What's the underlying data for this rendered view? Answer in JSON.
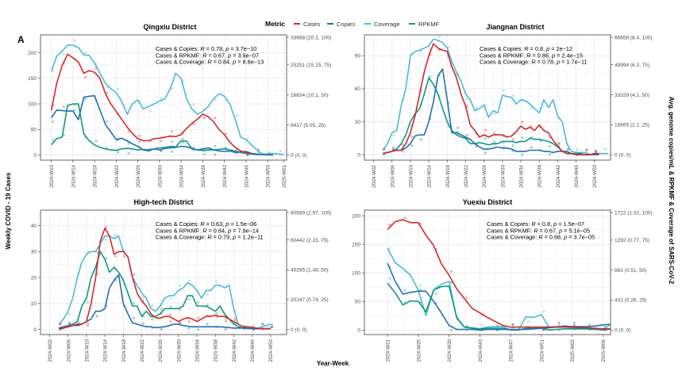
{
  "panel_label": "A",
  "y_left_label": "Weekly COVID - 19 Cases",
  "y_right_label": "Avg. genome copies/mL & RPKMF & Coverage of SARS-CoV-2",
  "x_label": "Year-Week",
  "legend": {
    "title": "Metric",
    "items": [
      {
        "name": "Cases",
        "color": "#d62728"
      },
      {
        "name": "Copies",
        "color": "#1f6fb4"
      },
      {
        "name": "Coverage",
        "color": "#4bbad8"
      },
      {
        "name": "RPKMF",
        "color": "#0f9a7e"
      }
    ]
  },
  "chart_data": [
    {
      "type": "line",
      "title": "Qingxiu District",
      "xlabel": "Year-Week",
      "ylabel": "Weekly COVID - 19 Cases",
      "x_start_week": 8,
      "x_ticks": [
        "2024-W10",
        "2024-W14",
        "2024-W18",
        "2024-W22",
        "2024-W26",
        "2024-W30",
        "2024-W34",
        "2024-W38",
        "2024-W42",
        "2024-W46",
        "2024-W50",
        "2025-W01"
      ],
      "x_tick_weeks": [
        10,
        14,
        18,
        22,
        26,
        30,
        34,
        38,
        42,
        46,
        50,
        53
      ],
      "x_range": [
        8,
        53.5
      ],
      "ylim": [
        -10,
        235
      ],
      "y_ticks": [
        0,
        50,
        100,
        150,
        200
      ],
      "right_ticks": [
        "0 (0, 0)",
        "8417 (5.05, 25)",
        "16834 (10.1, 50)",
        "25251 (15.15, 75)",
        "33668 (20.2, 100)"
      ],
      "right_max": 235,
      "annotations": [
        {
          "label": "Cases & Copies: ",
          "r": "0.78",
          "p": "3.7e−10"
        },
        {
          "label": "Cases & RPKMF: ",
          "r": "0.67",
          "p": "3.9e−07"
        },
        {
          "label": "Cases & Coverage: ",
          "r": "0.84",
          "p": "8.6e−13"
        }
      ],
      "series": [
        {
          "name": "Cases",
          "start": 10,
          "values": [
            87,
            140,
            175,
            197,
            190,
            182,
            160,
            165,
            162,
            150,
            120,
            100,
            85,
            70,
            55,
            42,
            32,
            28,
            28,
            32,
            33,
            35,
            37,
            36,
            40,
            52,
            62,
            70,
            80,
            75,
            65,
            50,
            40,
            25,
            15,
            8,
            5,
            3
          ]
        },
        {
          "name": "Copies",
          "start": 10,
          "values": [
            73,
            88,
            87,
            86,
            86,
            69,
            113,
            115,
            116,
            88,
            60,
            45,
            30,
            33,
            28,
            22,
            17,
            10,
            8,
            12,
            10,
            13,
            14,
            15,
            17,
            16,
            13,
            10,
            12,
            14,
            10,
            8,
            7,
            8,
            5,
            6,
            7,
            3,
            2,
            1,
            1,
            0
          ]
        },
        {
          "name": "Coverage",
          "start": 10,
          "values": [
            164,
            193,
            203,
            215,
            215,
            210,
            196,
            195,
            180,
            160,
            140,
            130,
            122,
            105,
            80,
            100,
            108,
            90,
            95,
            100,
            105,
            110,
            130,
            160,
            150,
            110,
            90,
            80,
            85,
            95,
            110,
            120,
            115,
            100,
            70,
            35,
            30,
            20,
            10,
            2,
            2,
            3,
            2,
            1
          ]
        },
        {
          "name": "RPKMF",
          "start": 10,
          "values": [
            20,
            32,
            35,
            97,
            100,
            100,
            42,
            28,
            20,
            15,
            12,
            10,
            9,
            12,
            13,
            12,
            10,
            11,
            10,
            12,
            14,
            15,
            17,
            16,
            28,
            27,
            12,
            10,
            9,
            10,
            10,
            11,
            12,
            10,
            8,
            5,
            3,
            2,
            1,
            1,
            1,
            0
          ]
        }
      ]
    },
    {
      "type": "line",
      "title": "Jiangnan District",
      "xlabel": "Year-Week",
      "ylabel": "Weekly COVID - 19 Cases",
      "x_start_week": 0,
      "x_ticks": [
        "2024-W02",
        "2024-W06",
        "2024-W10",
        "2024-W14",
        "2024-W18",
        "2024-W22",
        "2024-W26",
        "2024-W30",
        "2024-W34",
        "2024-W38",
        "2024-W42",
        "2024-W46",
        "2024-W50"
      ],
      "x_tick_weeks": [
        2,
        6,
        10,
        14,
        18,
        22,
        26,
        30,
        34,
        38,
        42,
        46,
        50
      ],
      "x_range": [
        0,
        53.5
      ],
      "ylim": [
        -5,
        109
      ],
      "y_ticks": [
        0,
        30,
        60,
        90
      ],
      "right_ticks": [
        "0 (0, 0)",
        "16665 (2.1, 25)",
        "33329 (4.2, 50)",
        "49994 (6.3, 75)",
        "66658 (8.4, 100)"
      ],
      "right_max": 109,
      "annotations": [
        {
          "label": "Cases & Copies: ",
          "r": "0.8",
          "p": "2e−12"
        },
        {
          "label": "Cases & RPKMF: ",
          "r": "0.86",
          "p": "2.4e−15"
        },
        {
          "label": "Cases & Coverage: ",
          "r": "0.78",
          "p": "1.7e−11"
        }
      ],
      "series": [
        {
          "name": "Cases",
          "start": 4,
          "values": [
            1,
            2,
            3,
            4,
            4,
            10,
            20,
            35,
            55,
            75,
            90,
            101,
            97,
            95,
            94,
            80,
            70,
            55,
            44,
            27,
            22,
            16,
            18,
            16,
            18,
            18,
            18,
            16,
            17,
            21,
            26,
            23,
            25,
            22,
            27,
            22,
            20,
            13,
            8,
            3,
            1,
            1,
            0,
            0,
            0,
            0,
            1,
            1
          ]
        },
        {
          "name": "Copies",
          "start": 4,
          "values": [
            1,
            2,
            3,
            4,
            4,
            6,
            10,
            17,
            18,
            18,
            30,
            48,
            72,
            78,
            50,
            20,
            20,
            18,
            16,
            14,
            10,
            7,
            5,
            5,
            6,
            7,
            6,
            6,
            5,
            3,
            3,
            3,
            4,
            4,
            4,
            3,
            3,
            2,
            3,
            3,
            3,
            1,
            0,
            0,
            0,
            0,
            0,
            0
          ]
        },
        {
          "name": "Coverage",
          "start": 4,
          "values": [
            4,
            10,
            20,
            22,
            45,
            60,
            90,
            94,
            95,
            97,
            99,
            105,
            104,
            102,
            97,
            85,
            75,
            67,
            55,
            50,
            40,
            42,
            45,
            34,
            40,
            38,
            54,
            53,
            52,
            46,
            50,
            49,
            46,
            42,
            38,
            50,
            43,
            50,
            35,
            30,
            10,
            3,
            2,
            2,
            2,
            0,
            0,
            1,
            1,
            1
          ]
        },
        {
          "name": "RPKMF",
          "start": 4,
          "values": [
            1,
            2,
            3,
            5,
            10,
            18,
            30,
            37,
            42,
            55,
            70,
            64,
            55,
            42,
            30,
            22,
            18,
            16,
            15,
            10,
            10,
            11,
            10,
            9,
            10,
            10,
            12,
            12,
            12,
            11,
            12,
            12,
            15,
            14,
            14,
            13,
            12,
            10,
            7,
            3,
            1,
            1,
            1,
            1,
            0,
            0,
            1,
            1
          ]
        }
      ]
    },
    {
      "type": "line",
      "title": "High-tech District",
      "xlabel": "Year-Week",
      "ylabel": "Weekly COVID - 19 Cases",
      "x_start_week": 0,
      "x_ticks": [
        "2024-W02",
        "2024-W06",
        "2024-W10",
        "2024-W14",
        "2024-W18",
        "2024-W22",
        "2024-W26",
        "2024-W30",
        "2024-W34",
        "2024-W38",
        "2024-W42",
        "2024-W46",
        "2024-W50"
      ],
      "x_tick_weeks": [
        2,
        6,
        10,
        14,
        18,
        22,
        26,
        30,
        34,
        38,
        42,
        46,
        50
      ],
      "x_range": [
        0,
        53.5
      ],
      "ylim": [
        -2,
        46
      ],
      "y_ticks": [
        0,
        10,
        20,
        30,
        40
      ],
      "right_ticks": [
        "0 (0, 0)",
        "20147 (0.74, 25)",
        "40295 (1.48, 50)",
        "60442 (2.23, 75)",
        "80589 (2.97, 100)"
      ],
      "right_max": 46,
      "annotations": [
        {
          "label": "Cases & Copies: ",
          "r": "0.63",
          "p": "1.5e−06"
        },
        {
          "label": "Cases & RPKMF: ",
          "r": "0.84",
          "p": "7.9e−14"
        },
        {
          "label": "Cases & Coverage: ",
          "r": "0.79",
          "p": "1.2e−11"
        }
      ],
      "series": [
        {
          "name": "Cases",
          "start": 4,
          "values": [
            0,
            0.5,
            1,
            1.5,
            2,
            2,
            3,
            10,
            20,
            34,
            39,
            36,
            29,
            30,
            30,
            28,
            20,
            14,
            11,
            9,
            6,
            4.5,
            4.3,
            5,
            5,
            4,
            3,
            4,
            4.5,
            4,
            3,
            4,
            5,
            5,
            5.5,
            5,
            5,
            4,
            3,
            2,
            1,
            1,
            0.8,
            0.5,
            0.3,
            0.2,
            0.2
          ]
        },
        {
          "name": "Copies",
          "start": 4,
          "values": [
            0.5,
            1,
            1,
            1.5,
            1.5,
            2,
            3,
            4,
            7,
            7,
            8,
            16,
            19,
            21,
            10,
            6,
            2.5,
            2,
            1.5,
            1,
            1,
            0.7,
            0.8,
            1,
            1.5,
            2,
            2,
            1.5,
            1.2,
            1,
            1,
            1,
            1,
            1,
            1,
            1,
            0.8,
            0.7,
            0.5,
            0.5,
            0.5,
            0.4,
            0.3,
            0.3,
            0.3,
            0.3,
            0.4
          ]
        },
        {
          "name": "Coverage",
          "start": 4,
          "values": [
            2,
            4,
            7,
            12,
            20,
            26,
            29,
            30,
            30,
            33,
            36,
            36,
            35,
            36,
            30,
            28,
            20,
            17,
            14,
            12,
            8,
            7,
            9,
            12,
            13,
            13,
            15,
            16,
            18,
            17,
            15,
            12,
            15,
            15,
            17,
            17,
            16,
            17,
            8,
            2,
            1,
            0.5,
            0.3,
            0.2,
            1,
            1.5,
            2
          ]
        },
        {
          "name": "RPKMF",
          "start": 4,
          "values": [
            0.5,
            1,
            1.5,
            2,
            3,
            9,
            12,
            20,
            24,
            30,
            27,
            22,
            24,
            22,
            19,
            14,
            9,
            9,
            5,
            7,
            5,
            5,
            6,
            8,
            8,
            8,
            8,
            9,
            13,
            13,
            9,
            9,
            9,
            8,
            7,
            9,
            6,
            4,
            2,
            1,
            0.5,
            0.3,
            0.3,
            0.3,
            0.3,
            0.3,
            0.3
          ]
        }
      ]
    },
    {
      "type": "line",
      "title": "Yuexiu District",
      "xlabel": "Year-Week",
      "ylabel": "Weekly COVID - 19 Cases",
      "x_start_week": 28,
      "x_ticks": [
        "2024-W31",
        "2024-W35",
        "2024-W39",
        "2024-W43",
        "2024-W47",
        "2024-W51",
        "2025-W02",
        "2025-W06"
      ],
      "x_tick_weeks": [
        31,
        35,
        39,
        43,
        47,
        51,
        55,
        59
      ],
      "x_range": [
        28,
        60
      ],
      "ylim": [
        -8,
        210
      ],
      "y_ticks": [
        0,
        50,
        100,
        150,
        200
      ],
      "right_ticks": [
        "0 (0, 0)",
        "431 (0.26, 25)",
        "861 (0.51, 50)",
        "1292 (0.77, 75)",
        "1722 (1.02, 100)"
      ],
      "right_max": 210,
      "annotations": [
        {
          "label": "Cases & Copies: ",
          "r": "0.8",
          "p": "1.5e−07"
        },
        {
          "label": "Cases & RPKMF: ",
          "r": "0.67",
          "p": "5.1e−05"
        },
        {
          "label": "Cases & Coverage: ",
          "r": "0.68",
          "p": "3.7e−05"
        }
      ],
      "series": [
        {
          "name": "Cases",
          "start": 31,
          "values": [
            176,
            190,
            193,
            188,
            188,
            166,
            148,
            116,
            96,
            72,
            55,
            38,
            30,
            22,
            15,
            8,
            5,
            5,
            5,
            5,
            5,
            5,
            5,
            5,
            5,
            4,
            4,
            3,
            2,
            2
          ]
        },
        {
          "name": "Copies",
          "start": 31,
          "values": [
            117,
            85,
            63,
            66,
            68,
            68,
            50,
            30,
            8,
            1,
            1,
            1,
            0,
            1,
            1,
            1,
            1,
            1,
            1,
            2,
            3,
            4,
            5,
            7,
            6,
            6,
            6,
            7,
            9,
            10
          ]
        },
        {
          "name": "Coverage",
          "start": 31,
          "values": [
            143,
            118,
            108,
            96,
            70,
            25,
            70,
            80,
            85,
            20,
            5,
            4,
            2,
            5,
            6,
            6,
            0,
            0,
            23,
            22,
            27,
            5,
            6,
            5,
            4,
            2,
            2,
            3,
            0,
            10
          ]
        },
        {
          "name": "RPKMF",
          "start": 31,
          "values": [
            82,
            65,
            44,
            51,
            50,
            32,
            70,
            76,
            77,
            22,
            5,
            3,
            2,
            3,
            3,
            3,
            0,
            0,
            3,
            3,
            3,
            0,
            1,
            2,
            2,
            2,
            2,
            1,
            0,
            2
          ]
        }
      ]
    }
  ]
}
